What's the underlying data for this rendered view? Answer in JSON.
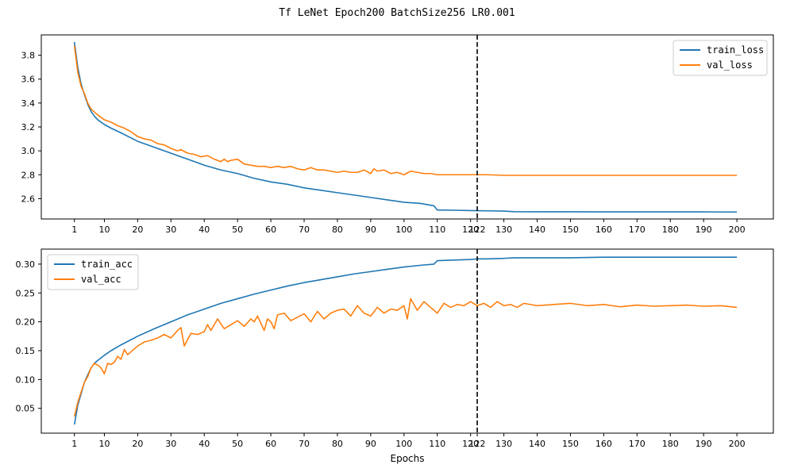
{
  "figure": {
    "title": "Tf LeNet Epoch200 BatchSize256 LR0.001"
  },
  "colors": {
    "train": "#1f77b4",
    "val": "#ff7f0e",
    "marker": "#000000"
  },
  "chart_data": [
    {
      "type": "line",
      "title": "",
      "xlabel": "",
      "ylabel": "",
      "xlim": [
        -8.95,
        210.95
      ],
      "ylim": [
        2.43,
        3.97
      ],
      "x_ticks": [
        1,
        10,
        20,
        30,
        40,
        50,
        60,
        70,
        80,
        90,
        100,
        110,
        120,
        122,
        130,
        140,
        150,
        160,
        170,
        180,
        190,
        200
      ],
      "y_ticks": [
        2.6,
        2.8,
        3.0,
        3.2,
        3.4,
        3.6,
        3.8
      ],
      "y_tick_labels": [
        "2.6",
        "2.8",
        "3.0",
        "3.2",
        "3.4",
        "3.6",
        "3.8"
      ],
      "vertical_line": {
        "x": 122,
        "style": "dashed"
      },
      "legend": {
        "position": "top-right"
      },
      "series": [
        {
          "name": "train_loss",
          "color_key": "train",
          "x": [
            1,
            2,
            3,
            4,
            5,
            6,
            7,
            8,
            10,
            12,
            15,
            20,
            25,
            30,
            35,
            40,
            45,
            50,
            55,
            60,
            65,
            70,
            75,
            80,
            85,
            90,
            95,
            100,
            105,
            109,
            110,
            115,
            120,
            122,
            125,
            130,
            133,
            140,
            150,
            160,
            170,
            180,
            190,
            200
          ],
          "values": [
            3.91,
            3.7,
            3.56,
            3.47,
            3.39,
            3.33,
            3.29,
            3.26,
            3.22,
            3.19,
            3.15,
            3.08,
            3.03,
            2.98,
            2.93,
            2.88,
            2.84,
            2.81,
            2.77,
            2.74,
            2.72,
            2.69,
            2.67,
            2.65,
            2.63,
            2.61,
            2.59,
            2.57,
            2.56,
            2.54,
            2.505,
            2.503,
            2.5,
            2.499,
            2.498,
            2.496,
            2.491,
            2.49,
            2.49,
            2.489,
            2.489,
            2.489,
            2.489,
            2.488
          ]
        },
        {
          "name": "val_loss",
          "color_key": "val",
          "x": [
            1,
            2,
            3,
            4,
            5,
            6,
            8,
            10,
            12,
            14,
            16,
            18,
            20,
            22,
            24,
            26,
            28,
            30,
            32,
            33,
            35,
            37,
            39,
            41,
            43,
            45,
            46,
            47,
            48,
            50,
            52,
            54,
            56,
            58,
            60,
            62,
            64,
            66,
            68,
            70,
            72,
            74,
            76,
            78,
            80,
            82,
            84,
            86,
            88,
            90,
            91,
            92,
            94,
            96,
            98,
            100,
            102,
            104,
            106,
            108,
            110,
            115,
            120,
            122,
            125,
            130,
            135,
            140,
            150,
            160,
            170,
            180,
            190,
            200
          ],
          "values": [
            3.88,
            3.66,
            3.54,
            3.48,
            3.4,
            3.35,
            3.3,
            3.26,
            3.24,
            3.21,
            3.19,
            3.16,
            3.12,
            3.1,
            3.09,
            3.06,
            3.05,
            3.02,
            3.0,
            3.01,
            2.98,
            2.97,
            2.95,
            2.96,
            2.93,
            2.91,
            2.93,
            2.91,
            2.92,
            2.93,
            2.89,
            2.88,
            2.87,
            2.87,
            2.86,
            2.87,
            2.86,
            2.87,
            2.85,
            2.84,
            2.86,
            2.84,
            2.84,
            2.83,
            2.82,
            2.83,
            2.82,
            2.82,
            2.84,
            2.81,
            2.85,
            2.83,
            2.84,
            2.81,
            2.82,
            2.8,
            2.83,
            2.82,
            2.81,
            2.81,
            2.8,
            2.8,
            2.8,
            2.8,
            2.8,
            2.795,
            2.795,
            2.795,
            2.795,
            2.795,
            2.795,
            2.795,
            2.795,
            2.795
          ]
        }
      ]
    },
    {
      "type": "line",
      "title": "",
      "xlabel": "Epochs",
      "ylabel": "",
      "xlim": [
        -8.95,
        210.95
      ],
      "ylim": [
        0.007,
        0.326
      ],
      "x_ticks": [
        1,
        10,
        20,
        30,
        40,
        50,
        60,
        70,
        80,
        90,
        100,
        110,
        120,
        122,
        130,
        140,
        150,
        160,
        170,
        180,
        190,
        200
      ],
      "y_ticks": [
        0.05,
        0.1,
        0.15,
        0.2,
        0.25,
        0.3
      ],
      "y_tick_labels": [
        "0.05",
        "0.10",
        "0.15",
        "0.20",
        "0.25",
        "0.30"
      ],
      "vertical_line": {
        "x": 122,
        "style": "dashed"
      },
      "legend": {
        "position": "top-left"
      },
      "series": [
        {
          "name": "train_acc",
          "color_key": "train",
          "x": [
            1,
            2,
            3,
            4,
            5,
            6,
            7,
            8,
            10,
            12,
            15,
            20,
            25,
            30,
            35,
            40,
            45,
            50,
            55,
            60,
            65,
            70,
            75,
            80,
            85,
            90,
            95,
            100,
            105,
            109,
            110,
            115,
            120,
            122,
            125,
            130,
            133,
            140,
            150,
            160,
            170,
            180,
            190,
            200
          ],
          "values": [
            0.022,
            0.055,
            0.075,
            0.095,
            0.108,
            0.12,
            0.128,
            0.133,
            0.142,
            0.15,
            0.16,
            0.175,
            0.188,
            0.2,
            0.212,
            0.222,
            0.232,
            0.24,
            0.248,
            0.255,
            0.262,
            0.268,
            0.273,
            0.278,
            0.283,
            0.287,
            0.291,
            0.295,
            0.298,
            0.3,
            0.306,
            0.307,
            0.308,
            0.309,
            0.309,
            0.31,
            0.311,
            0.311,
            0.311,
            0.312,
            0.312,
            0.312,
            0.312,
            0.312
          ]
        },
        {
          "name": "val_acc",
          "color_key": "val",
          "x": [
            1,
            2,
            3,
            4,
            5,
            6,
            7,
            8,
            9,
            10,
            11,
            12,
            13,
            14,
            15,
            16,
            17,
            18,
            20,
            22,
            24,
            26,
            28,
            30,
            32,
            33,
            34,
            36,
            38,
            40,
            41,
            42,
            44,
            46,
            48,
            50,
            52,
            54,
            55,
            56,
            58,
            59,
            60,
            61,
            62,
            64,
            66,
            68,
            70,
            72,
            74,
            76,
            78,
            80,
            82,
            84,
            86,
            88,
            90,
            92,
            94,
            96,
            98,
            100,
            101,
            102,
            104,
            106,
            108,
            110,
            112,
            114,
            116,
            118,
            120,
            122,
            124,
            126,
            128,
            130,
            132,
            134,
            136,
            140,
            145,
            150,
            155,
            160,
            165,
            170,
            175,
            180,
            185,
            190,
            195,
            200
          ],
          "values": [
            0.036,
            0.06,
            0.078,
            0.095,
            0.105,
            0.12,
            0.128,
            0.125,
            0.12,
            0.11,
            0.128,
            0.126,
            0.13,
            0.14,
            0.135,
            0.152,
            0.143,
            0.148,
            0.158,
            0.165,
            0.168,
            0.172,
            0.178,
            0.172,
            0.185,
            0.19,
            0.158,
            0.18,
            0.178,
            0.183,
            0.195,
            0.185,
            0.205,
            0.188,
            0.195,
            0.202,
            0.192,
            0.205,
            0.2,
            0.21,
            0.185,
            0.205,
            0.2,
            0.188,
            0.212,
            0.215,
            0.202,
            0.208,
            0.214,
            0.2,
            0.218,
            0.205,
            0.215,
            0.22,
            0.222,
            0.21,
            0.228,
            0.215,
            0.21,
            0.225,
            0.215,
            0.222,
            0.22,
            0.228,
            0.205,
            0.24,
            0.22,
            0.235,
            0.225,
            0.215,
            0.232,
            0.225,
            0.23,
            0.228,
            0.235,
            0.228,
            0.232,
            0.225,
            0.235,
            0.228,
            0.23,
            0.225,
            0.232,
            0.228,
            0.23,
            0.232,
            0.228,
            0.23,
            0.226,
            0.229,
            0.227,
            0.228,
            0.229,
            0.227,
            0.228,
            0.225
          ]
        }
      ]
    }
  ]
}
